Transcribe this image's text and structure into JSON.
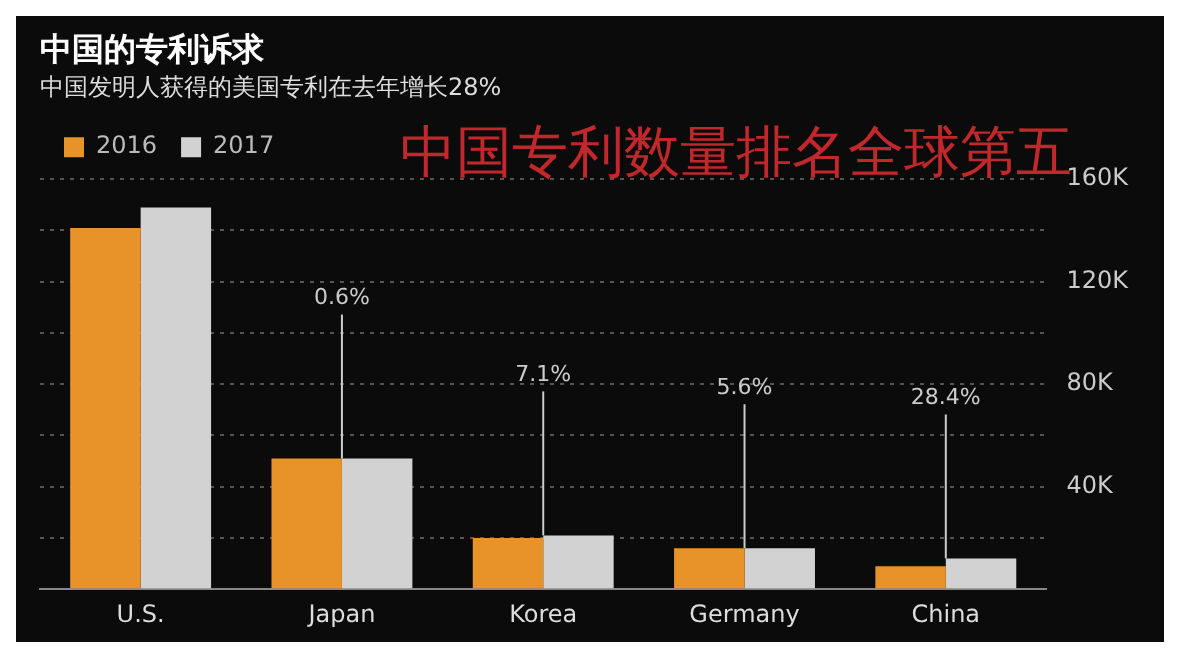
{
  "chart_data": {
    "type": "bar",
    "title": "中国的专利诉求",
    "subtitle": "中国发明人获得的美国专利在去年增长28%",
    "categories": [
      "U.S.",
      "Japan",
      "Korea",
      "Germany",
      "China"
    ],
    "series": [
      {
        "name": "2016",
        "color": "#e8922a",
        "values": [
          141000,
          51000,
          20000,
          16000,
          9000
        ]
      },
      {
        "name": "2017",
        "color": "#d2d2d2",
        "values": [
          149000,
          51000,
          21000,
          16000,
          12000
        ]
      }
    ],
    "ylim": [
      0,
      160000
    ],
    "yticks": [
      {
        "value": 0,
        "label": null
      },
      {
        "value": 20000,
        "label": null
      },
      {
        "value": 40000,
        "label": "40K"
      },
      {
        "value": 60000,
        "label": null
      },
      {
        "value": 80000,
        "label": "80K"
      },
      {
        "value": 100000,
        "label": null
      },
      {
        "value": 120000,
        "label": "120K"
      },
      {
        "value": 140000,
        "label": null
      },
      {
        "value": 160000,
        "label": "160K"
      }
    ],
    "grid": "y",
    "legend": "top left",
    "annotations": [
      "中国专利数量排名全球第五",
      {
        "text": "0.6%",
        "x": "Japan",
        "y": 51000
      },
      {
        "text": "7.1%",
        "x": "Korea",
        "y": 21000
      },
      {
        "text": "5.6%",
        "x": "Germany",
        "y": 16000
      },
      {
        "text": "28.4%",
        "x": "China",
        "y": 12000
      }
    ]
  }
}
